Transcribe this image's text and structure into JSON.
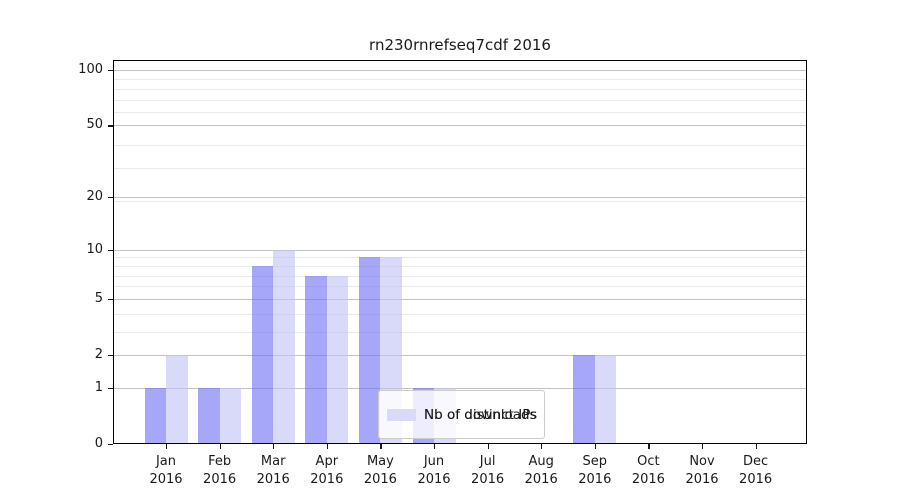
{
  "chart_data": {
    "type": "bar",
    "title": "rn230rnrefseq7cdf 2016",
    "xlabel": "",
    "ylabel": "",
    "x_tick_months": [
      "Jan",
      "Feb",
      "Mar",
      "Apr",
      "May",
      "Jun",
      "Jul",
      "Aug",
      "Sep",
      "Oct",
      "Nov",
      "Dec"
    ],
    "x_tick_year": "2016",
    "y_scale": "log10(value+1)",
    "y_ticks": [
      0,
      1,
      2,
      5,
      10,
      20,
      50,
      100
    ],
    "y_minor_gridlines": [
      3,
      4,
      6,
      7,
      8,
      9,
      19,
      29,
      39,
      59,
      69,
      79,
      89
    ],
    "ylim": [
      0,
      112
    ],
    "grid": true,
    "legend_position": "lower center-left inside plot",
    "series": [
      {
        "name": "Nb of distinct IPs",
        "values": [
          1,
          1,
          8,
          7,
          9,
          1,
          0,
          0,
          2,
          0,
          0,
          0
        ],
        "fill": "rgba(108,108,247,0.6)",
        "legend_color": "#a7a7fa"
      },
      {
        "name": "Nb of downloads",
        "values": [
          2,
          1,
          10,
          7,
          9,
          1,
          0,
          0,
          2,
          0,
          0,
          0
        ],
        "fill": "rgba(192,192,247,0.6)",
        "legend_color": "#d9d9fa"
      }
    ],
    "colors": {
      "major_grid": "#c3c3c3",
      "minor_grid": "#eaeaea",
      "spine": "#000000",
      "text": "#1a1a1a",
      "background": "#ffffff"
    }
  }
}
